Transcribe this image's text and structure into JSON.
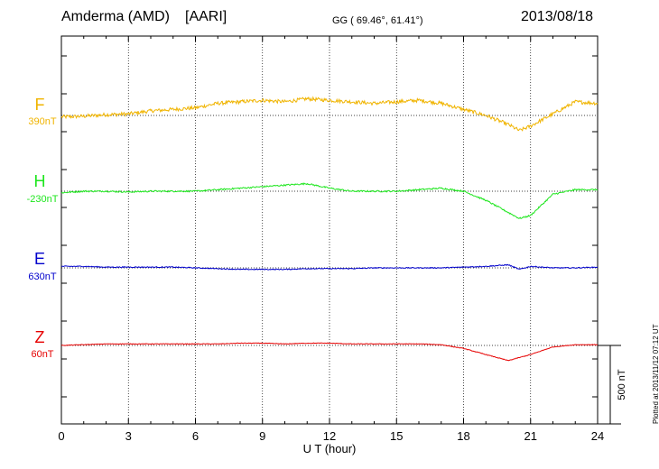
{
  "header": {
    "station": "Amderma (AMD)",
    "institute": "[AARI]",
    "coords": "GG ( 69.46°,  61.41°)",
    "date": "2013/08/18"
  },
  "footer": {
    "plotted": "Plotted at 2013/11/12 07:12 UT"
  },
  "chart_data": {
    "type": "line",
    "title": "Amderma (AMD)  [AARI]  2013/08/18",
    "xlabel": "U T (hour)",
    "xlim": [
      0,
      24
    ],
    "xticks": [
      "0",
      "3",
      "6",
      "9",
      "12",
      "15",
      "18",
      "21",
      "24"
    ],
    "scale_bar": {
      "label": "500 nT",
      "nT": 500
    },
    "series": [
      {
        "name": "F",
        "baseline_label": "390nT",
        "color": "#f0b400",
        "noise": 12,
        "hours": [
          0,
          1,
          2,
          3,
          4,
          5,
          6,
          7,
          8,
          9,
          10,
          11,
          12,
          13,
          14,
          15,
          16,
          17,
          18,
          19,
          20,
          20.5,
          21,
          22,
          23,
          24
        ],
        "values": [
          -10,
          -5,
          5,
          10,
          30,
          40,
          50,
          80,
          90,
          100,
          90,
          110,
          100,
          90,
          80,
          90,
          100,
          80,
          40,
          0,
          -60,
          -100,
          -70,
          10,
          90,
          80
        ]
      },
      {
        "name": "H",
        "baseline_label": "-230nT",
        "color": "#1ee61e",
        "noise": 5,
        "hours": [
          0,
          1,
          2,
          3,
          4,
          5,
          6,
          7,
          8,
          9,
          10,
          11,
          12,
          13,
          14,
          15,
          16,
          17,
          18,
          19,
          20,
          20.5,
          21,
          22,
          23,
          24
        ],
        "values": [
          -10,
          0,
          0,
          -5,
          0,
          0,
          0,
          10,
          20,
          30,
          40,
          50,
          20,
          0,
          0,
          0,
          10,
          20,
          0,
          -60,
          -140,
          -180,
          -160,
          -20,
          10,
          10
        ]
      },
      {
        "name": "E",
        "baseline_label": "630nT",
        "color": "#0000cc",
        "noise": 3,
        "hours": [
          0,
          1,
          2,
          3,
          4,
          5,
          6,
          7,
          8,
          9,
          10,
          11,
          12,
          13,
          14,
          15,
          16,
          17,
          18,
          19,
          20,
          20.5,
          21,
          22,
          23,
          24
        ],
        "values": [
          10,
          10,
          5,
          5,
          5,
          5,
          0,
          -5,
          -10,
          -10,
          -10,
          -5,
          -5,
          -5,
          0,
          0,
          0,
          0,
          5,
          10,
          20,
          -10,
          10,
          0,
          0,
          5
        ]
      },
      {
        "name": "Z",
        "baseline_label": "60nT",
        "color": "#e60000",
        "noise": 2,
        "hours": [
          0,
          1,
          2,
          3,
          4,
          5,
          6,
          7,
          8,
          9,
          10,
          11,
          12,
          13,
          14,
          15,
          16,
          17,
          18,
          19,
          20,
          20.5,
          21,
          22,
          23,
          24
        ],
        "values": [
          0,
          5,
          10,
          10,
          10,
          10,
          10,
          10,
          15,
          15,
          10,
          15,
          15,
          10,
          10,
          10,
          10,
          5,
          -20,
          -60,
          -100,
          -80,
          -60,
          -10,
          5,
          5
        ]
      }
    ]
  }
}
